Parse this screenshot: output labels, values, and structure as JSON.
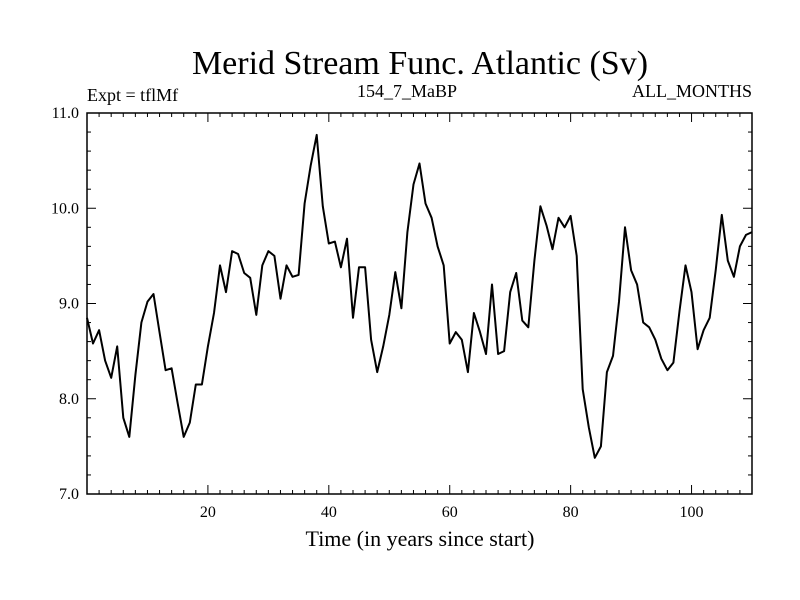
{
  "chart_data": {
    "type": "line",
    "title": "Merid Stream Func. Atlantic (Sv)",
    "subtitle_left": "Expt = tflMf",
    "subtitle_center": "154_7_MaBP",
    "subtitle_right": "ALL_MONTHS",
    "xlabel": "Time (in years since start)",
    "ylabel": "",
    "xlim": [
      0,
      110
    ],
    "ylim": [
      7.0,
      11.0
    ],
    "xticks_major": [
      20,
      40,
      60,
      80,
      100
    ],
    "xtick_labels": [
      "20",
      "40",
      "60",
      "80",
      "100"
    ],
    "yticks_major": [
      7.0,
      8.0,
      9.0,
      10.0,
      11.0
    ],
    "ytick_labels": [
      "7.0",
      "8.0",
      "9.0",
      "10.0",
      "11.0"
    ],
    "grid": false,
    "series": [
      {
        "name": "Merid Stream Func. Atlantic",
        "color": "#000000",
        "x": [
          0,
          1,
          2,
          3,
          4,
          5,
          6,
          7,
          8,
          9,
          10,
          11,
          12,
          13,
          14,
          15,
          16,
          17,
          18,
          19,
          20,
          21,
          22,
          23,
          24,
          25,
          26,
          27,
          28,
          29,
          30,
          31,
          32,
          33,
          34,
          35,
          36,
          37,
          38,
          39,
          40,
          41,
          42,
          43,
          44,
          45,
          46,
          47,
          48,
          49,
          50,
          51,
          52,
          53,
          54,
          55,
          56,
          57,
          58,
          59,
          60,
          61,
          62,
          63,
          64,
          65,
          66,
          67,
          68,
          69,
          70,
          71,
          72,
          73,
          74,
          75,
          76,
          77,
          78,
          79,
          80,
          81,
          82,
          83,
          84,
          85,
          86,
          87,
          88,
          89,
          90,
          91,
          92,
          93,
          94,
          95,
          96,
          97,
          98,
          99,
          100,
          101,
          102,
          103,
          104,
          105,
          106,
          107,
          108,
          109,
          110
        ],
        "values": [
          8.85,
          8.58,
          8.72,
          8.4,
          8.22,
          8.55,
          7.8,
          7.6,
          8.25,
          8.8,
          9.02,
          9.1,
          8.7,
          8.3,
          8.32,
          7.95,
          7.6,
          7.75,
          8.15,
          8.15,
          8.55,
          8.9,
          9.4,
          9.12,
          9.55,
          9.52,
          9.32,
          9.27,
          8.88,
          9.4,
          9.55,
          9.5,
          9.05,
          9.4,
          9.28,
          9.3,
          10.05,
          10.45,
          10.77,
          10.02,
          9.63,
          9.65,
          9.38,
          9.68,
          8.85,
          9.38,
          9.38,
          8.62,
          8.28,
          8.55,
          8.88,
          9.33,
          8.95,
          9.75,
          10.25,
          10.47,
          10.05,
          9.9,
          9.6,
          9.4,
          8.58,
          8.7,
          8.62,
          8.28,
          8.9,
          8.7,
          8.47,
          9.2,
          8.47,
          8.5,
          9.12,
          9.32,
          8.82,
          8.75,
          9.45,
          10.02,
          9.82,
          9.57,
          9.9,
          9.8,
          9.92,
          9.5,
          8.1,
          7.7,
          7.38,
          7.5,
          8.28,
          8.45,
          9.02,
          9.8,
          9.35,
          9.2,
          8.8,
          8.75,
          8.62,
          8.42,
          8.3,
          8.38,
          8.92,
          9.4,
          9.12,
          8.52,
          8.72,
          8.85,
          9.35,
          9.93,
          9.45,
          9.28,
          9.6,
          9.72,
          9.75
        ]
      }
    ]
  }
}
